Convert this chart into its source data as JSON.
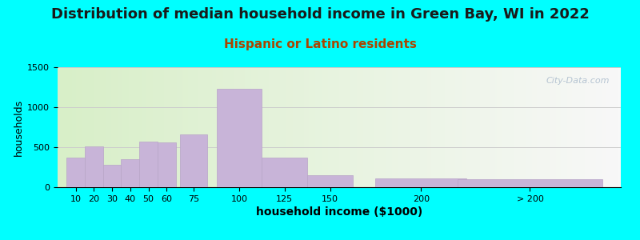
{
  "title": "Distribution of median household income in Green Bay, WI in 2022",
  "subtitle": "Hispanic or Latino residents",
  "xlabel": "household income ($1000)",
  "ylabel": "households",
  "background_color": "#00FFFF",
  "bar_color": "#C8B4D8",
  "bar_edge_color": "#B8A4C8",
  "categories": [
    "10",
    "20",
    "30",
    "40",
    "50",
    "60",
    "75",
    "100",
    "125",
    "150",
    "200",
    "> 200"
  ],
  "values": [
    370,
    510,
    280,
    350,
    575,
    565,
    660,
    1230,
    370,
    155,
    110,
    105
  ],
  "ylim": [
    0,
    1500
  ],
  "yticks": [
    0,
    500,
    1000,
    1500
  ],
  "title_fontsize": 13,
  "subtitle_fontsize": 11,
  "subtitle_color": "#AA4400",
  "gradient_left": "#D8EFC8",
  "gradient_right": "#F8F8F8",
  "watermark_text": "City-Data.com",
  "watermark_color": "#AABBCC",
  "bar_positions": [
    10,
    20,
    30,
    40,
    50,
    60,
    75,
    100,
    125,
    150,
    200,
    260
  ],
  "bar_widths": [
    10,
    10,
    10,
    10,
    10,
    10,
    15,
    25,
    25,
    25,
    50,
    80
  ]
}
